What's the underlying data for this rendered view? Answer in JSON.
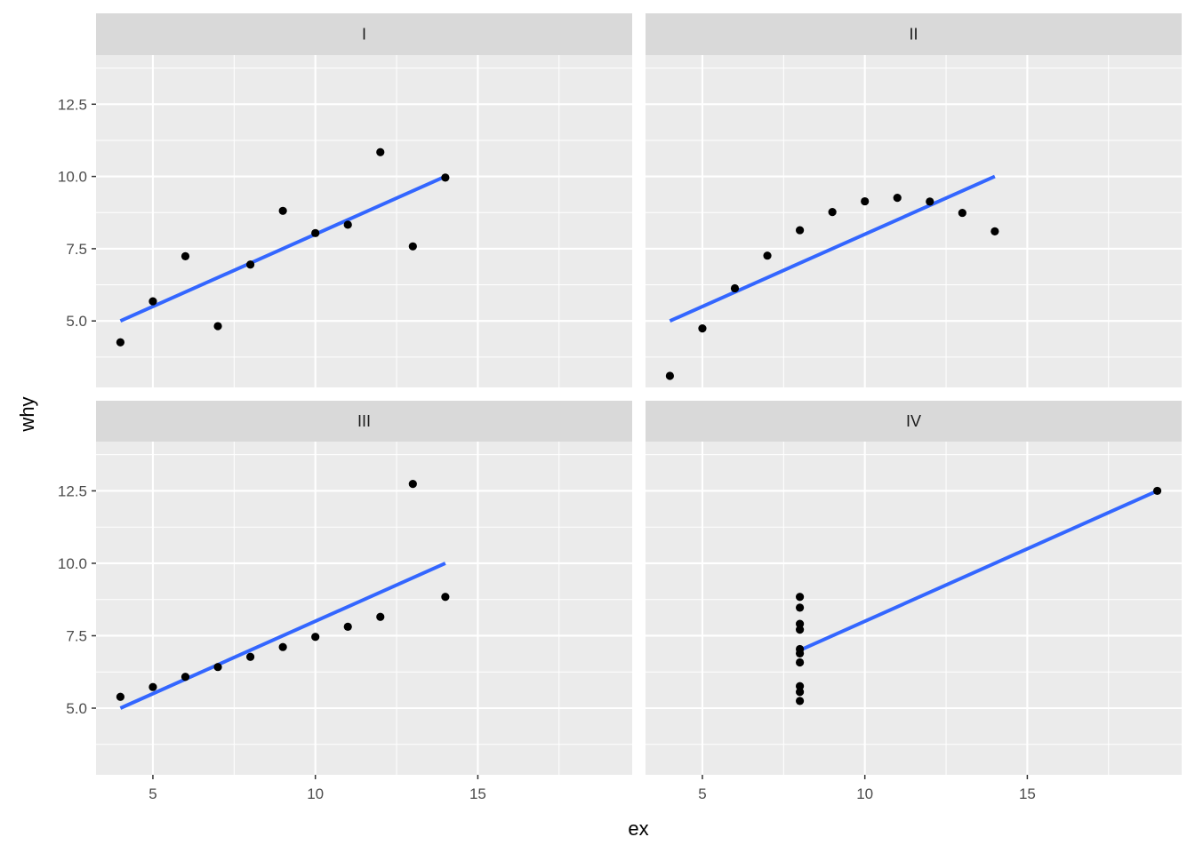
{
  "chart_data": {
    "type": "scatter",
    "facet_layout": "2x2",
    "xlabel": "ex",
    "ylabel": "why",
    "xlim": [
      3.25,
      19.75
    ],
    "ylim": [
      2.7,
      14.2
    ],
    "x_ticks": [
      5,
      10,
      15
    ],
    "x_tick_labels": [
      "5",
      "10",
      "15"
    ],
    "y_ticks": [
      5.0,
      7.5,
      10.0,
      12.5
    ],
    "y_tick_labels": [
      "5.0",
      "7.5",
      "10.0",
      "12.5"
    ],
    "grid": true,
    "point_color": "#000000",
    "line_color": "#3366ff",
    "panels": [
      {
        "label": "I",
        "points": [
          [
            10,
            8.04
          ],
          [
            8,
            6.95
          ],
          [
            13,
            7.58
          ],
          [
            9,
            8.81
          ],
          [
            11,
            8.33
          ],
          [
            14,
            9.96
          ],
          [
            6,
            7.24
          ],
          [
            4,
            4.26
          ],
          [
            12,
            10.84
          ],
          [
            7,
            4.82
          ],
          [
            5,
            5.68
          ]
        ],
        "fit": {
          "x": [
            4,
            14
          ],
          "y": [
            5.0,
            10.0
          ]
        }
      },
      {
        "label": "II",
        "points": [
          [
            10,
            9.14
          ],
          [
            8,
            8.14
          ],
          [
            13,
            8.74
          ],
          [
            9,
            8.77
          ],
          [
            11,
            9.26
          ],
          [
            14,
            8.1
          ],
          [
            6,
            6.13
          ],
          [
            4,
            3.1
          ],
          [
            12,
            9.13
          ],
          [
            7,
            7.26
          ],
          [
            5,
            4.74
          ]
        ],
        "fit": {
          "x": [
            4,
            14
          ],
          "y": [
            5.0,
            10.0
          ]
        }
      },
      {
        "label": "III",
        "points": [
          [
            10,
            7.46
          ],
          [
            8,
            6.77
          ],
          [
            13,
            12.74
          ],
          [
            9,
            7.11
          ],
          [
            11,
            7.81
          ],
          [
            14,
            8.84
          ],
          [
            6,
            6.08
          ],
          [
            4,
            5.39
          ],
          [
            12,
            8.15
          ],
          [
            7,
            6.42
          ],
          [
            5,
            5.73
          ]
        ],
        "fit": {
          "x": [
            4,
            14
          ],
          "y": [
            5.0,
            10.0
          ]
        }
      },
      {
        "label": "IV",
        "points": [
          [
            8,
            6.58
          ],
          [
            8,
            5.76
          ],
          [
            8,
            7.71
          ],
          [
            8,
            8.84
          ],
          [
            8,
            8.47
          ],
          [
            8,
            7.04
          ],
          [
            8,
            5.25
          ],
          [
            19,
            12.5
          ],
          [
            8,
            5.56
          ],
          [
            8,
            7.91
          ],
          [
            8,
            6.89
          ]
        ],
        "fit": {
          "x": [
            8,
            19
          ],
          "y": [
            7.0,
            12.5
          ]
        }
      }
    ]
  }
}
